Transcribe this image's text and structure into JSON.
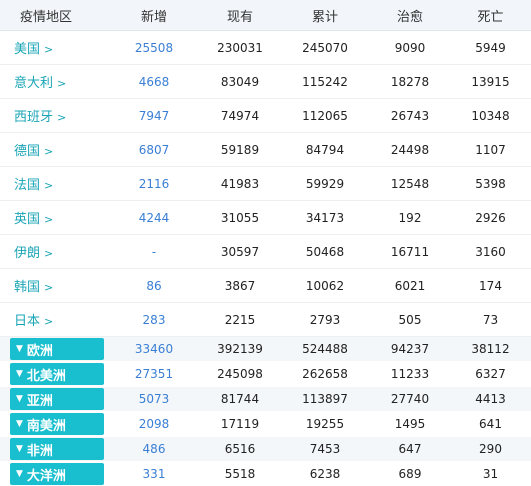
{
  "headers": [
    "疫情地区",
    "新增",
    "现有",
    "累计",
    "治愈",
    "死亡"
  ],
  "countries": [
    {
      "name": "美国",
      "new": "25508",
      "current": "230031",
      "total": "245070",
      "cured": "9090",
      "dead": "5949"
    },
    {
      "name": "意大利",
      "new": "4668",
      "current": "83049",
      "total": "115242",
      "cured": "18278",
      "dead": "13915"
    },
    {
      "name": "西班牙",
      "new": "7947",
      "current": "74974",
      "total": "112065",
      "cured": "26743",
      "dead": "10348"
    },
    {
      "name": "德国",
      "new": "6807",
      "current": "59189",
      "total": "84794",
      "cured": "24498",
      "dead": "1107"
    },
    {
      "name": "法国",
      "new": "2116",
      "current": "41983",
      "total": "59929",
      "cured": "12548",
      "dead": "5398"
    },
    {
      "name": "英国",
      "new": "4244",
      "current": "31055",
      "total": "34173",
      "cured": "192",
      "dead": "2926"
    },
    {
      "name": "伊朗",
      "new": "-",
      "current": "30597",
      "total": "50468",
      "cured": "16711",
      "dead": "3160"
    },
    {
      "name": "韩国",
      "new": "86",
      "current": "3867",
      "total": "10062",
      "cured": "6021",
      "dead": "174"
    },
    {
      "name": "日本",
      "new": "283",
      "current": "2215",
      "total": "2793",
      "cured": "505",
      "dead": "73"
    }
  ],
  "continents": [
    {
      "name": "欧洲",
      "new": "33460",
      "current": "392139",
      "total": "524488",
      "cured": "94237",
      "dead": "38112"
    },
    {
      "name": "北美洲",
      "new": "27351",
      "current": "245098",
      "total": "262658",
      "cured": "11233",
      "dead": "6327"
    },
    {
      "name": "亚洲",
      "new": "5073",
      "current": "81744",
      "total": "113897",
      "cured": "27740",
      "dead": "4413"
    },
    {
      "name": "南美洲",
      "new": "2098",
      "current": "17119",
      "total": "19255",
      "cured": "1495",
      "dead": "641"
    },
    {
      "name": "非洲",
      "new": "486",
      "current": "6516",
      "total": "7453",
      "cured": "647",
      "dead": "290"
    },
    {
      "name": "大洋洲",
      "new": "331",
      "current": "5518",
      "total": "6238",
      "cured": "689",
      "dead": "31"
    }
  ],
  "colors": {
    "accent": "#1abfcf",
    "link": "#1aa5b6",
    "new": "#3a7fd5"
  },
  "icons": {
    "country_arrow": "chevron-right-icon",
    "continent_toggle": "triangle-down-icon"
  }
}
